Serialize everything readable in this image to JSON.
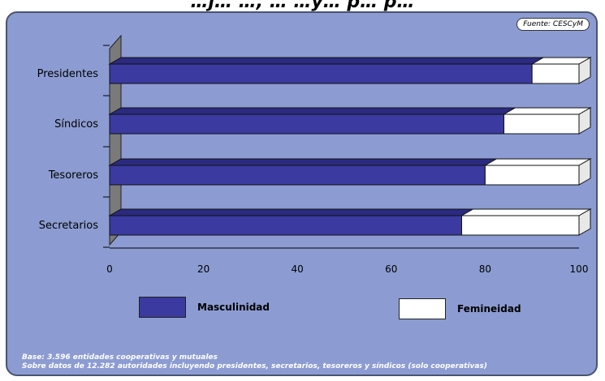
{
  "title_fragment": "…j… …, … …y… p… p…",
  "source_badge": "Fuente: CESCyM",
  "chart_data": {
    "type": "bar",
    "orientation": "horizontal",
    "stacked": true,
    "categories": [
      "Presidentes",
      "Síndicos",
      "Tesoreros",
      "Secretarios"
    ],
    "series": [
      {
        "name": "Masculinidad",
        "values": [
          90,
          84,
          80,
          75
        ]
      },
      {
        "name": "Femineidad",
        "values": [
          10,
          16,
          20,
          25
        ]
      }
    ],
    "xticks": [
      "0",
      "20",
      "40",
      "60",
      "80",
      "100"
    ],
    "xlim": [
      0,
      100
    ],
    "legend_position": "bottom",
    "colors": {
      "Masculinidad": "#3a3aa0",
      "Femineidad": "#ffffff"
    }
  },
  "legend": [
    {
      "label": "Masculinidad",
      "color": "#3a3aa0"
    },
    {
      "label": "Femineidad",
      "color": "#ffffff"
    }
  ],
  "footnotes": [
    "Base: 3.596 entidades cooperativas y mutuales",
    "Sobre datos de 12.282 autoridades incluyendo presidentes, secretarios, tesoreros y síndicos (solo cooperativas)"
  ]
}
